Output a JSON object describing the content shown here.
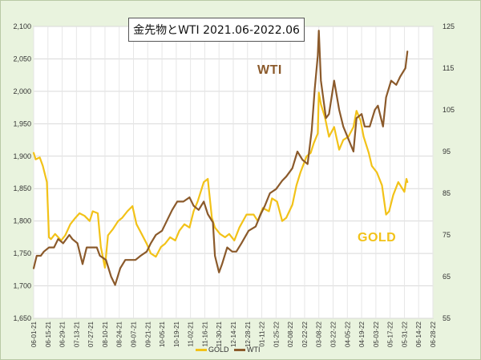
{
  "chart_data": {
    "type": "line",
    "title": "金先物とWTI 2021.06-2022.06",
    "annotations": [
      "WTI",
      "GOLD"
    ],
    "x_tick_labels": [
      "06-01-21",
      "06-15-21",
      "06-29-21",
      "07-13-21",
      "07-27-21",
      "08-10-21",
      "08-24-21",
      "09-07-21",
      "09-21-21",
      "10-05-21",
      "10-19-21",
      "11-02-21",
      "11-16-21",
      "11-30-21",
      "12-14-21",
      "12-28-21",
      "01-11-22",
      "01-25-22",
      "02-08-22",
      "02-22-22",
      "03-08-22",
      "03-22-22",
      "04-05-22",
      "04-19-22",
      "05-03-22",
      "05-17-22",
      "05-31-22",
      "06-14-22",
      "06-28-22"
    ],
    "y_left": {
      "ticks": [
        "1,650",
        "1,700",
        "1,750",
        "1,800",
        "1,850",
        "1,900",
        "1,950",
        "2,000",
        "2,050",
        "2,100"
      ],
      "range": [
        1650,
        2100
      ]
    },
    "y_right": {
      "ticks": [
        "55",
        "65",
        "75",
        "85",
        "95",
        "105",
        "115",
        "125"
      ],
      "range": [
        55,
        125
      ]
    },
    "grid": true,
    "legend_position": "bottom",
    "series": [
      {
        "name": "GOLD",
        "axis": "left",
        "color": "#f2c218",
        "x": [
          "06-01-21",
          "06-03-21",
          "06-07-21",
          "06-10-21",
          "06-14-21",
          "06-16-21",
          "06-18-21",
          "06-22-21",
          "06-28-21",
          "07-02-21",
          "07-07-21",
          "07-12-21",
          "07-16-21",
          "07-21-21",
          "07-26-21",
          "07-29-21",
          "08-03-21",
          "08-06-21",
          "08-10-21",
          "08-13-21",
          "08-18-21",
          "08-23-21",
          "08-27-21",
          "09-01-21",
          "09-06-21",
          "09-10-21",
          "09-15-21",
          "09-20-21",
          "09-24-21",
          "09-29-21",
          "10-04-21",
          "10-08-21",
          "10-13-21",
          "10-18-21",
          "10-22-21",
          "10-27-21",
          "11-01-21",
          "11-05-21",
          "11-09-21",
          "11-15-21",
          "11-19-21",
          "11-23-21",
          "11-26-21",
          "12-01-21",
          "12-06-21",
          "12-10-21",
          "12-15-21",
          "12-20-21",
          "12-27-21",
          "01-03-22",
          "01-07-22",
          "01-12-22",
          "01-18-22",
          "01-21-22",
          "01-26-22",
          "01-31-22",
          "02-04-22",
          "02-10-22",
          "02-14-22",
          "02-18-22",
          "02-24-22",
          "02-28-22",
          "03-03-22",
          "03-07-22",
          "03-08-22",
          "03-10-22",
          "03-14-22",
          "03-18-22",
          "03-23-22",
          "03-28-22",
          "04-01-22",
          "04-06-22",
          "04-11-22",
          "04-14-22",
          "04-18-22",
          "04-21-22",
          "04-26-22",
          "04-29-22",
          "05-04-22",
          "05-09-22",
          "05-13-22",
          "05-16-22",
          "05-20-22",
          "05-25-22",
          "05-31-22",
          "06-02-22",
          "06-03-22"
        ],
        "values": [
          1905,
          1895,
          1898,
          1885,
          1860,
          1775,
          1772,
          1780,
          1770,
          1778,
          1795,
          1805,
          1812,
          1808,
          1800,
          1815,
          1812,
          1760,
          1728,
          1778,
          1788,
          1800,
          1805,
          1815,
          1823,
          1795,
          1780,
          1765,
          1750,
          1745,
          1760,
          1765,
          1775,
          1770,
          1785,
          1795,
          1790,
          1815,
          1830,
          1860,
          1865,
          1805,
          1790,
          1780,
          1775,
          1780,
          1770,
          1790,
          1810,
          1810,
          1800,
          1820,
          1815,
          1835,
          1830,
          1800,
          1805,
          1825,
          1855,
          1875,
          1900,
          1905,
          1920,
          1935,
          1998,
          1980,
          1960,
          1930,
          1945,
          1910,
          1925,
          1930,
          1945,
          1970,
          1955,
          1930,
          1905,
          1885,
          1875,
          1855,
          1810,
          1815,
          1840,
          1860,
          1845,
          1865,
          1860
        ]
      },
      {
        "name": "WTI",
        "axis": "right",
        "color": "#8b5a2b",
        "x": [
          "06-01-21",
          "06-04-21",
          "06-08-21",
          "06-11-21",
          "06-16-21",
          "06-21-21",
          "06-25-21",
          "06-30-21",
          "07-06-21",
          "07-09-21",
          "07-14-21",
          "07-19-21",
          "07-23-21",
          "07-28-21",
          "08-02-21",
          "08-05-21",
          "08-11-21",
          "08-16-21",
          "08-20-21",
          "08-25-21",
          "08-30-21",
          "09-03-21",
          "09-09-21",
          "09-14-21",
          "09-20-21",
          "09-24-21",
          "09-29-21",
          "10-05-21",
          "10-11-21",
          "10-15-21",
          "10-20-21",
          "10-26-21",
          "11-01-21",
          "11-05-21",
          "11-10-21",
          "11-15-21",
          "11-19-21",
          "11-24-21",
          "11-26-21",
          "11-30-21",
          "12-03-21",
          "12-08-21",
          "12-13-21",
          "12-17-21",
          "12-22-21",
          "12-29-21",
          "01-05-22",
          "01-10-22",
          "01-14-22",
          "01-19-22",
          "01-25-22",
          "01-31-22",
          "02-04-22",
          "02-10-22",
          "02-15-22",
          "02-20-22",
          "02-25-22",
          "03-01-22",
          "03-04-22",
          "03-07-22",
          "03-08-22",
          "03-10-22",
          "03-15-22",
          "03-18-22",
          "03-23-22",
          "03-28-22",
          "04-01-22",
          "04-06-22",
          "04-11-22",
          "04-14-22",
          "04-19-22",
          "04-22-22",
          "04-27-22",
          "05-02-22",
          "05-05-22",
          "05-10-22",
          "05-13-22",
          "05-18-22",
          "05-23-22",
          "05-27-22",
          "06-01-22",
          "06-03-22"
        ],
        "values": [
          67,
          70,
          70,
          71,
          72,
          72,
          74,
          73,
          75,
          74,
          73,
          68,
          72,
          72,
          72,
          70,
          69,
          65,
          63,
          67,
          69,
          69,
          69,
          70,
          71,
          73,
          75,
          76,
          79,
          81,
          83,
          83,
          84,
          82,
          81,
          83,
          80,
          78,
          70,
          66,
          68,
          72,
          71,
          71,
          73,
          76,
          77,
          80,
          82,
          85,
          86,
          88,
          89,
          91,
          95,
          93,
          92,
          100,
          110,
          118,
          124,
          112,
          103,
          104,
          112,
          105,
          101,
          98,
          95,
          103,
          104,
          101,
          101,
          105,
          106,
          101,
          108,
          112,
          111,
          113,
          115,
          119
        ]
      }
    ]
  }
}
